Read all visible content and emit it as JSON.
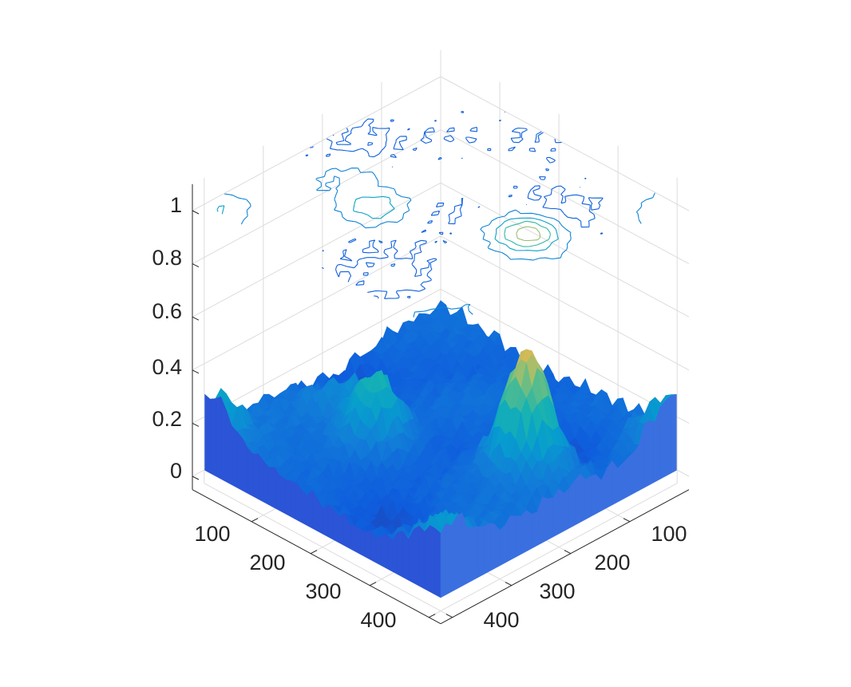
{
  "chart_data": {
    "type": "surface",
    "title": "",
    "xlabel": "",
    "ylabel": "",
    "zlabel": "",
    "grid": true,
    "colormap": "parula",
    "grid_extent": [
      400,
      400
    ],
    "xlim": [
      1,
      420
    ],
    "ylim": [
      1,
      420
    ],
    "zlim": [
      -0.05,
      1.1
    ],
    "x_ticks": [
      100,
      200,
      300,
      400
    ],
    "y_ticks": [
      100,
      200,
      300,
      400
    ],
    "z_ticks": [
      0,
      0.2,
      0.4,
      0.6,
      0.8,
      1
    ],
    "x_tick_labels": [
      "100",
      "200",
      "300",
      "400"
    ],
    "y_tick_labels": [
      "100",
      "200",
      "300",
      "400"
    ],
    "z_tick_labels": [
      "0",
      "0.2",
      "0.4",
      "0.6",
      "0.8",
      "1"
    ],
    "surface_z_range": [
      0.0,
      0.6
    ],
    "peaks": [
      {
        "x": 320,
        "y": 170,
        "z": 0.6
      },
      {
        "x": 150,
        "y": 260,
        "z": 0.4
      },
      {
        "x": 20,
        "y": 400,
        "z": 0.3
      },
      {
        "x": 400,
        "y": 20,
        "z": 0.3
      },
      {
        "x": 390,
        "y": 380,
        "z": 0.25
      },
      {
        "x": 80,
        "y": 230,
        "z": 0.25
      }
    ],
    "contour_plane_z": 1.0,
    "contour_levels": [
      0.1,
      0.2,
      0.3,
      0.4,
      0.5
    ],
    "colors": {
      "low": "#352a87",
      "mid_low": "#2f6ee0",
      "mid": "#1fa8c8",
      "mid_high": "#7ec96c",
      "high": "#f9e918"
    }
  }
}
